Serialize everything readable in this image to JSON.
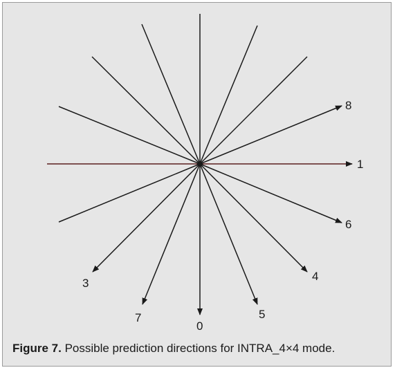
{
  "diagram": {
    "line_color": "#1a1a1a",
    "horizontal_line_color": "#5a1e1e",
    "background": "#e6e6e6",
    "direction_labels": {
      "d0": "0",
      "d1": "1",
      "d3": "3",
      "d4": "4",
      "d5": "5",
      "d6": "6",
      "d7": "7",
      "d8": "8"
    }
  },
  "caption": {
    "figure_number": "Figure 7.",
    "text": " Possible prediction directions for INTRA_4×4 mode."
  }
}
